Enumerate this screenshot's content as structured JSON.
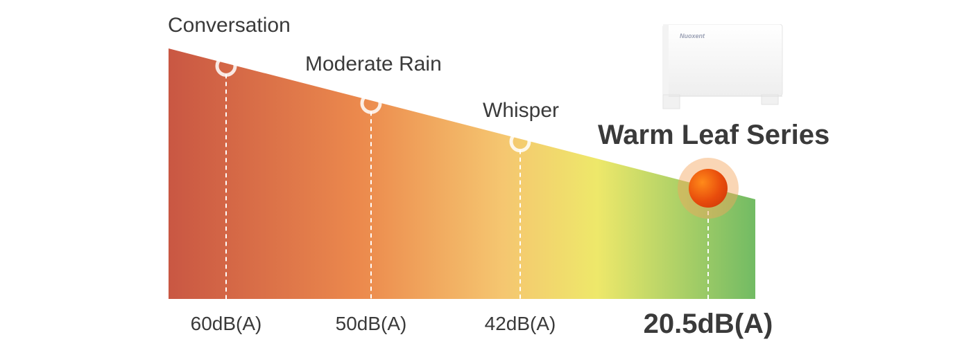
{
  "chart_data": {
    "type": "area",
    "title": "",
    "xlabel": "",
    "ylabel": "",
    "gradient_colors": [
      "#c95743",
      "#ec8a4d",
      "#f5c670",
      "#eee86a",
      "#72bb64"
    ],
    "points": [
      {
        "label": "Conversation",
        "value": 60,
        "value_label": "60dB(A)"
      },
      {
        "label": "Moderate Rain",
        "value": 50,
        "value_label": "50dB(A)"
      },
      {
        "label": "Whisper",
        "value": 42,
        "value_label": "42dB(A)"
      },
      {
        "label": "Warm Leaf Series",
        "value": 20.5,
        "value_label": "20.5dB(A)",
        "highlight": true
      }
    ]
  },
  "product": {
    "brand": "Nuoxent",
    "icon": "fan-coil-unit-image"
  }
}
